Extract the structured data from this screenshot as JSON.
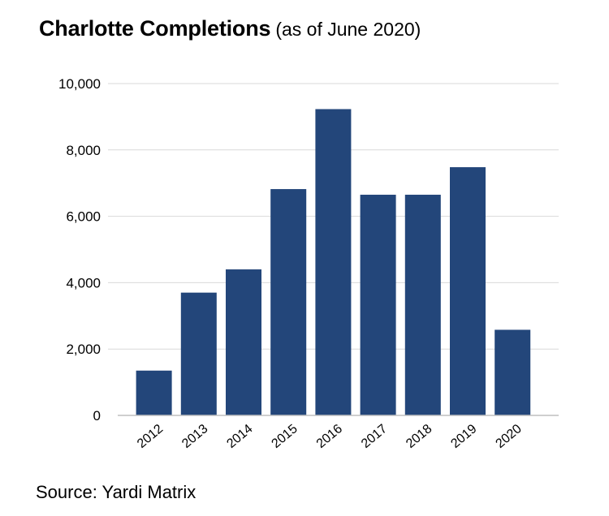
{
  "title": "Charlotte Completions",
  "subtitle": "(as of June 2020)",
  "source": "Source: Yardi Matrix",
  "colors": {
    "bar": "#23467a",
    "grid": "#d9d9d9",
    "axis": "#bfbfbf"
  },
  "chart_data": {
    "type": "bar",
    "title": "Charlotte Completions",
    "subtitle": "(as of June 2020)",
    "xlabel": "",
    "ylabel": "",
    "categories": [
      "2012",
      "2013",
      "2014",
      "2015",
      "2016",
      "2017",
      "2018",
      "2019",
      "2020"
    ],
    "values": [
      1350,
      3700,
      4400,
      6820,
      9230,
      6650,
      6650,
      7480,
      2580
    ],
    "ylim": [
      0,
      10000
    ],
    "yticks": [
      0,
      2000,
      4000,
      6000,
      8000,
      10000
    ],
    "ytick_labels": [
      "0",
      "2,000",
      "4,000",
      "6,000",
      "8,000",
      "10,000"
    ],
    "grid": true,
    "legend": "none"
  }
}
